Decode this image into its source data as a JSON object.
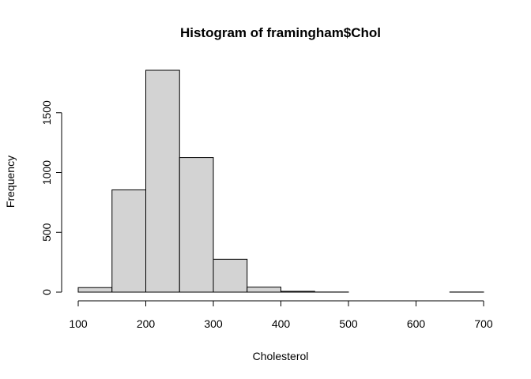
{
  "chart_data": {
    "type": "bar",
    "title": "Histogram of framingham$Chol",
    "xlabel": "Cholesterol",
    "ylabel": "Frequency",
    "bin_edges": [
      100,
      150,
      200,
      250,
      300,
      350,
      400,
      450,
      500,
      550,
      600,
      650,
      700
    ],
    "values": [
      38,
      855,
      1855,
      1125,
      275,
      42,
      7,
      1,
      0,
      0,
      0,
      1
    ],
    "xlim": [
      100,
      700
    ],
    "ylim": [
      0,
      1855
    ],
    "x_ticks": [
      100,
      200,
      300,
      400,
      500,
      600,
      700
    ],
    "x_tick_labels": [
      "100",
      "200",
      "300",
      "400",
      "500",
      "600",
      "700"
    ],
    "y_ticks": [
      0,
      500,
      1000,
      1500
    ],
    "y_tick_labels": [
      "0",
      "500",
      "1000",
      "1500"
    ],
    "bar_color": "#d3d3d3",
    "border_color": "#000000",
    "grid": false,
    "legend": "none"
  }
}
